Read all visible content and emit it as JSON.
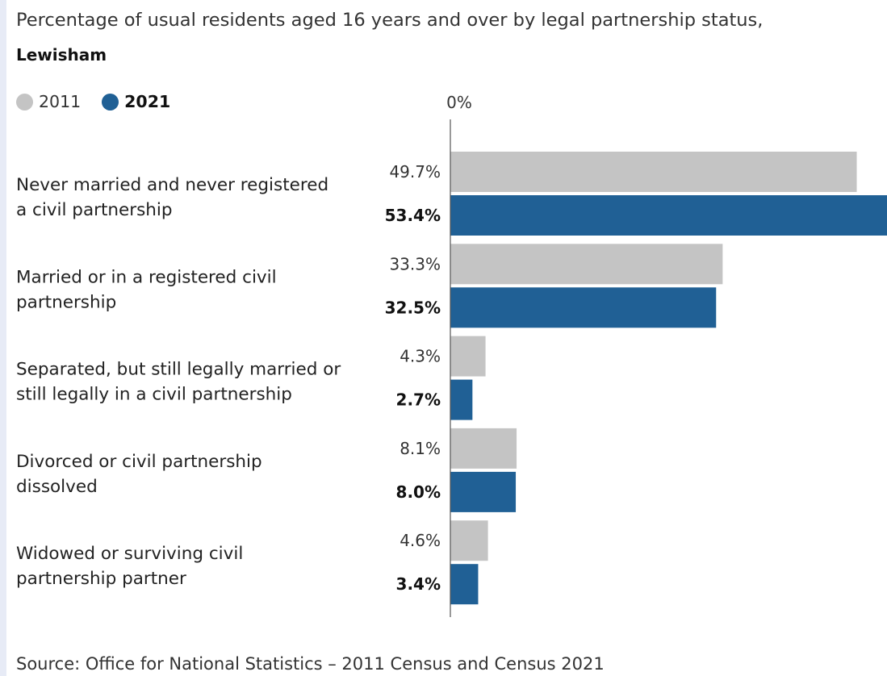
{
  "title": "Percentage of usual residents aged 16 years and over by legal partnership status,",
  "subtitle": "Lewisham",
  "source": "Source: Office for National Statistics – 2011 Census and Census 2021",
  "colors": {
    "series_2011": "#c4c4c4",
    "series_2021": "#206095",
    "axis": "#555555",
    "text": "#222222"
  },
  "legend": [
    {
      "label": "2011",
      "color": "#c4c4c4",
      "bold": false
    },
    {
      "label": "2021",
      "color": "#206095",
      "bold": true
    }
  ],
  "chart_data": {
    "type": "bar",
    "orientation": "horizontal",
    "axis_tick_labels": [
      "0%"
    ],
    "xlim": [
      0,
      53.4
    ],
    "unit": "%",
    "categories": [
      [
        "Never married and never registered",
        "a civil partnership"
      ],
      [
        "Married or in a registered civil",
        "partnership"
      ],
      [
        "Separated, but still legally married or",
        "still legally in a civil partnership"
      ],
      [
        "Divorced or civil partnership",
        "dissolved"
      ],
      [
        "Widowed or surviving civil",
        "partnership partner"
      ]
    ],
    "series": [
      {
        "name": "2011",
        "values": [
          49.7,
          33.3,
          4.3,
          8.1,
          4.6
        ],
        "labels": [
          "49.7%",
          "33.3%",
          "4.3%",
          "8.1%",
          "4.6%"
        ]
      },
      {
        "name": "2021",
        "values": [
          53.4,
          32.5,
          2.7,
          8.0,
          3.4
        ],
        "labels": [
          "53.4%",
          "32.5%",
          "2.7%",
          "8.0%",
          "3.4%"
        ]
      }
    ]
  }
}
